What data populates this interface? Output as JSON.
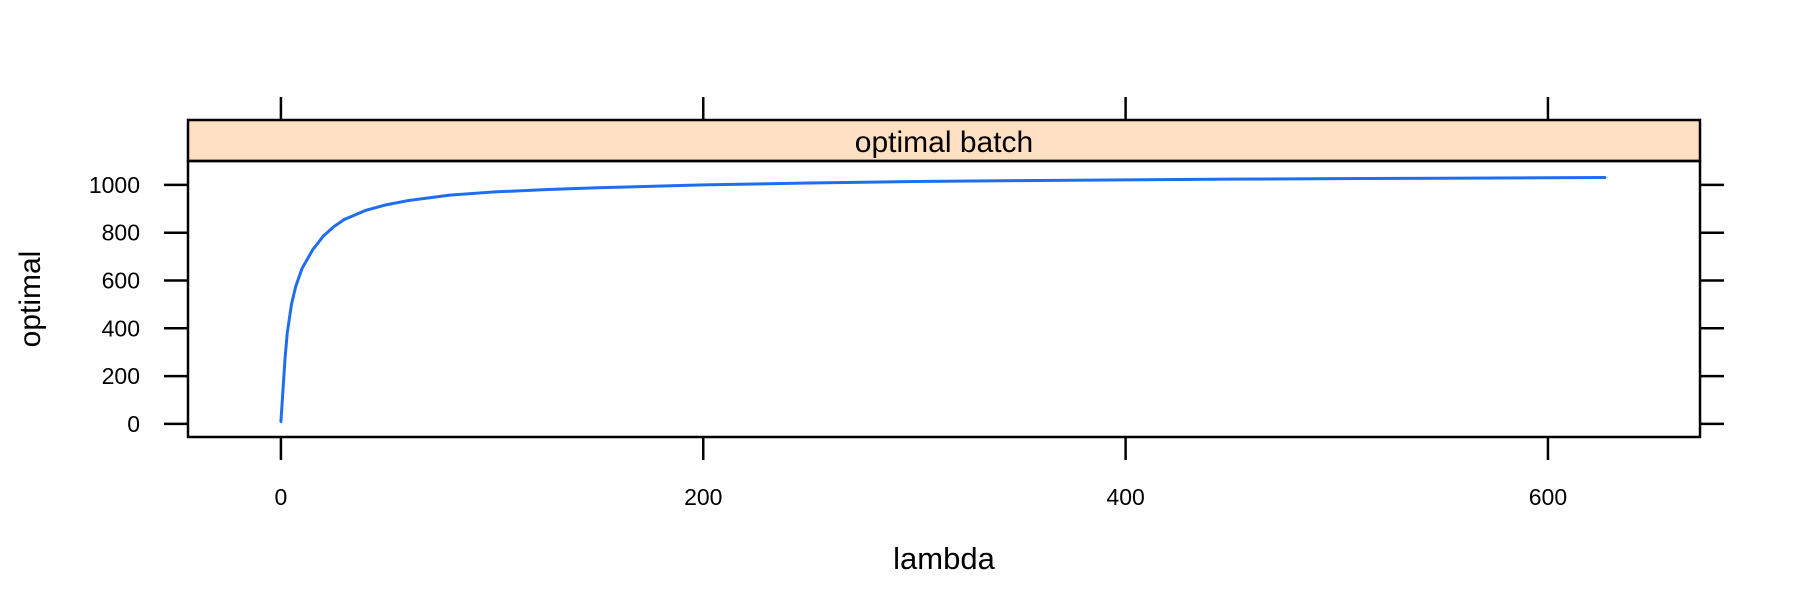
{
  "chart_data": {
    "type": "line",
    "strip_title": "optimal batch",
    "xlabel": "lambda",
    "ylabel": "optimal",
    "xlim": [
      -44,
      672
    ],
    "ylim": [
      -55,
      1100
    ],
    "x_ticks": [
      0,
      200,
      400,
      600
    ],
    "x_tick_labels": [
      "0",
      "200",
      "400",
      "600"
    ],
    "y_ticks": [
      0,
      200,
      400,
      600,
      800,
      1000
    ],
    "y_tick_labels": [
      "0",
      "200",
      "400",
      "600",
      "800",
      "1000"
    ],
    "grid": false,
    "colors": {
      "line": "#1f6ef0",
      "strip": "#ffe0c2",
      "frame": "#000000"
    },
    "series": [
      {
        "x": [
          0,
          1,
          2,
          3,
          5,
          7,
          10,
          15,
          20,
          25,
          30,
          40,
          50,
          60,
          80,
          100,
          125,
          150,
          200,
          250,
          300,
          350,
          400,
          450,
          500,
          550,
          600,
          627
        ],
        "y": [
          10,
          145,
          280,
          380,
          500,
          575,
          650,
          728,
          785,
          825,
          855,
          893,
          917,
          934,
          957,
          970,
          980,
          988,
          1000,
          1008,
          1014,
          1018,
          1021,
          1024,
          1026,
          1028,
          1030,
          1031
        ]
      }
    ]
  }
}
